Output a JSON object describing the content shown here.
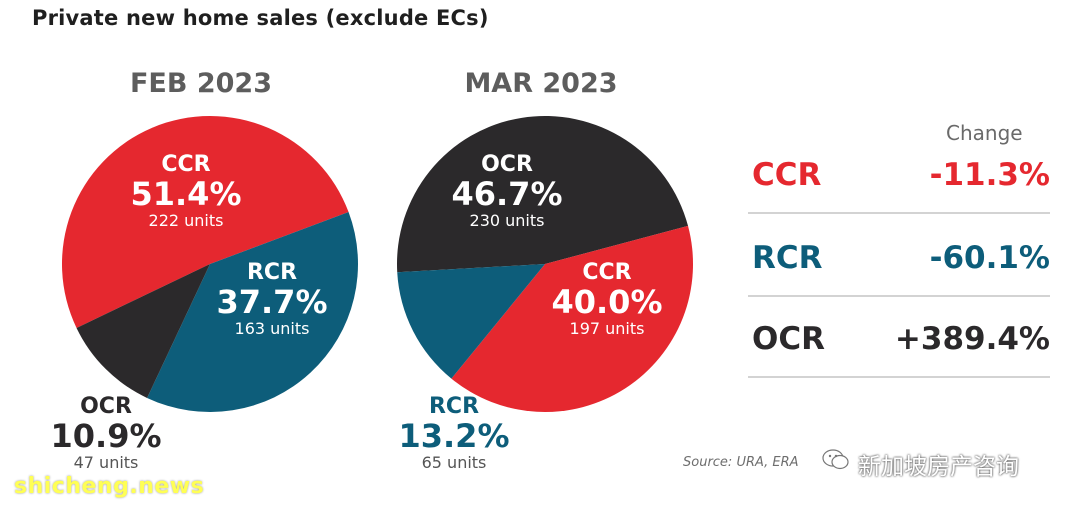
{
  "title": "Private new home sales (exclude ECs)",
  "colors": {
    "CCR": "#e5282f",
    "RCR": "#0d5d7a",
    "OCR": "#2b292b",
    "pie_title": "#5d5d5d"
  },
  "chart_data": [
    {
      "type": "pie",
      "title": "FEB 2023",
      "slices": [
        {
          "region": "CCR",
          "percent_label": "51.4%",
          "value": 51.4,
          "units_label": "222 units",
          "units": 222
        },
        {
          "region": "RCR",
          "percent_label": "37.7%",
          "value": 37.7,
          "units_label": "163 units",
          "units": 163
        },
        {
          "region": "OCR",
          "percent_label": "10.9%",
          "value": 10.9,
          "units_label": "47 units",
          "units": 47
        }
      ]
    },
    {
      "type": "pie",
      "title": "MAR 2023",
      "slices": [
        {
          "region": "OCR",
          "percent_label": "46.7%",
          "value": 46.7,
          "units_label": "230 units",
          "units": 230
        },
        {
          "region": "CCR",
          "percent_label": "40.0%",
          "value": 40.0,
          "units_label": "197 units",
          "units": 197
        },
        {
          "region": "RCR",
          "percent_label": "13.2%",
          "value": 13.2,
          "units_label": "65 units",
          "units": 65
        }
      ]
    },
    {
      "type": "table",
      "header": "Change",
      "rows": [
        {
          "region": "CCR",
          "change": "-11.3%"
        },
        {
          "region": "RCR",
          "change": "-60.1%"
        },
        {
          "region": "OCR",
          "change": "+389.4%"
        }
      ]
    }
  ],
  "source": "Source: URA, ERA",
  "wechat_account": "新加坡房产咨询",
  "watermark": "shicheng.news"
}
